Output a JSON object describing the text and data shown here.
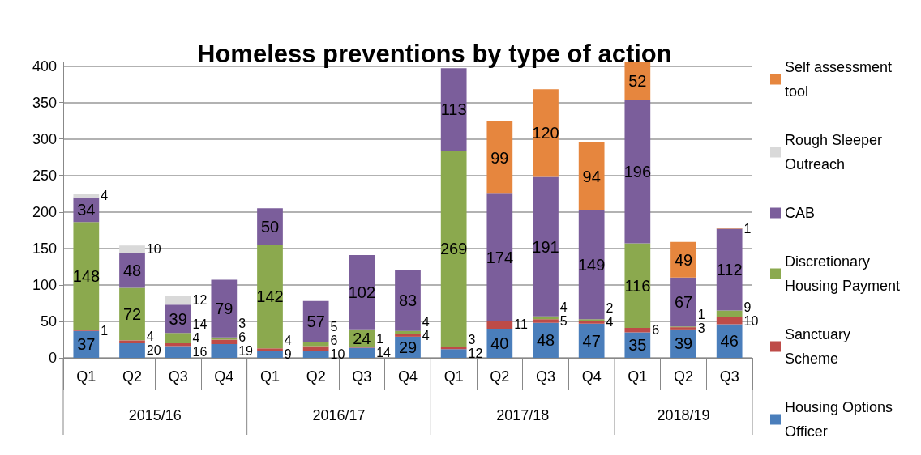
{
  "chart_data": {
    "type": "bar",
    "title": "Homeless preventions by type of action",
    "stacked": true,
    "data_labels": true,
    "legend": "right",
    "grid": "y",
    "categories": [
      "Q1",
      "Q2",
      "Q3",
      "Q4",
      "Q1",
      "Q2",
      "Q3",
      "Q4",
      "Q1",
      "Q2",
      "Q3",
      "Q4",
      "Q1",
      "Q2",
      "Q3"
    ],
    "annotations": [
      "2015/16",
      "2016/17",
      "2017/18",
      "2018/19"
    ],
    "ylim": [
      0,
      405
    ],
    "yticks": [
      0,
      50,
      100,
      150,
      200,
      250,
      300,
      350,
      400
    ],
    "series": [
      {
        "name": "Housing Options Officer",
        "color": "#4a7ebb",
        "values": [
          37,
          20,
          16,
          19,
          9,
          10,
          14,
          29,
          12,
          40,
          48,
          47,
          35,
          39,
          46
        ]
      },
      {
        "name": "Sanctuary Scheme",
        "color": "#be4b48",
        "values": [
          1,
          4,
          4,
          6,
          4,
          6,
          1,
          4,
          3,
          11,
          5,
          4,
          6,
          3,
          10
        ]
      },
      {
        "name": "Discretionary Housing Payment",
        "color": "#8ba94e",
        "values": [
          148,
          72,
          14,
          3,
          142,
          5,
          24,
          4,
          269,
          null,
          4,
          2,
          116,
          1,
          9
        ]
      },
      {
        "name": "CAB",
        "color": "#7b5e9b",
        "values": [
          34,
          48,
          39,
          79,
          50,
          57,
          102,
          83,
          113,
          174,
          191,
          149,
          196,
          67,
          112
        ]
      },
      {
        "name": "Rough Sleeper Outreach",
        "color": "#d9d9d9",
        "values": [
          4,
          10,
          12,
          null,
          null,
          null,
          null,
          null,
          null,
          null,
          null,
          null,
          null,
          null,
          null
        ]
      },
      {
        "name": "Self assessment tool",
        "color": "#e6863e",
        "values": [
          null,
          null,
          null,
          null,
          null,
          null,
          null,
          null,
          null,
          99,
          120,
          94,
          52,
          49,
          1
        ]
      }
    ]
  }
}
